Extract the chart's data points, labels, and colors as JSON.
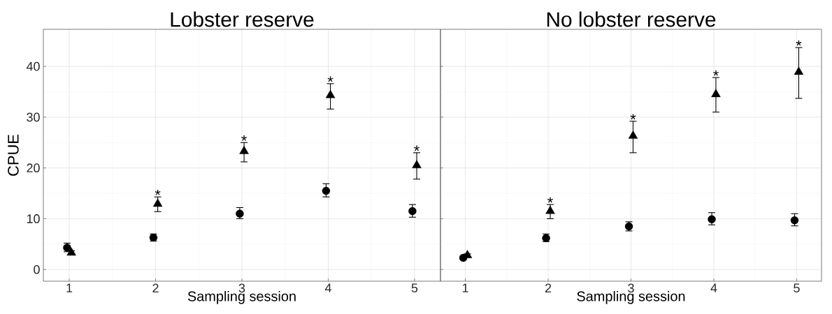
{
  "chart_data": [
    {
      "type": "scatter",
      "title": "Lobster reserve",
      "xlabel": "Sampling session",
      "ylabel": "CPUE",
      "xlim": [
        0.7,
        5.3
      ],
      "ylim": [
        -2.3,
        47.3
      ],
      "xticks": [
        1,
        2,
        3,
        4,
        5
      ],
      "yticks": [
        0,
        10,
        20,
        30,
        40
      ],
      "grid": true,
      "series": [
        {
          "color": "#000000",
          "marker": "circle",
          "x": [
            0.975,
            1.975,
            2.975,
            3.975,
            4.975
          ],
          "values": [
            4.3,
            6.3,
            11.0,
            15.5,
            11.5
          ],
          "errors": [
            [
              3.5,
              5.2
            ],
            [
              5.6,
              7.0
            ],
            [
              10.0,
              12.2
            ],
            [
              14.3,
              16.9
            ],
            [
              10.3,
              12.8
            ]
          ]
        },
        {
          "color": "#000000",
          "marker": "triangle",
          "x": [
            1.025,
            2.025,
            3.025,
            4.025,
            5.025
          ],
          "values": [
            3.3,
            12.9,
            23.3,
            34.3,
            20.5
          ],
          "errors": [
            [
              2.9,
              3.7
            ],
            [
              11.4,
              14.3
            ],
            [
              21.2,
              25.0
            ],
            [
              31.6,
              36.6
            ],
            [
              17.8,
              23.0
            ]
          ]
        }
      ],
      "annotations": [
        {
          "text": "*",
          "x": 2.025,
          "y": 14.3
        },
        {
          "text": "*",
          "x": 3.025,
          "y": 25.0
        },
        {
          "text": "*",
          "x": 4.025,
          "y": 36.6
        },
        {
          "text": "*",
          "x": 5.025,
          "y": 23.0
        }
      ]
    },
    {
      "type": "scatter",
      "title": "No lobster reserve",
      "xlabel": "Sampling session",
      "xlim": [
        0.7,
        5.3
      ],
      "ylim": [
        -2.3,
        47.3
      ],
      "xticks": [
        1,
        2,
        3,
        4,
        5
      ],
      "yticks": [
        0,
        10,
        20,
        30,
        40
      ],
      "grid": true,
      "tick_labels": "x",
      "series": [
        {
          "color": "#000000",
          "marker": "circle",
          "x": [
            0.975,
            1.975,
            2.975,
            3.975,
            4.975
          ],
          "values": [
            2.3,
            6.2,
            8.5,
            9.9,
            9.7
          ],
          "errors": [
            [
              2.0,
              2.6
            ],
            [
              5.5,
              7.0
            ],
            [
              7.6,
              9.4
            ],
            [
              8.8,
              11.2
            ],
            [
              8.6,
              11.0
            ]
          ]
        },
        {
          "color": "#000000",
          "marker": "triangle",
          "x": [
            1.025,
            2.025,
            3.025,
            4.025,
            5.025
          ],
          "values": [
            2.8,
            11.5,
            26.3,
            34.5,
            38.9
          ],
          "errors": [
            [
              2.5,
              3.1
            ],
            [
              10.0,
              12.8
            ],
            [
              23.0,
              29.2
            ],
            [
              31.0,
              37.8
            ],
            [
              33.7,
              43.7
            ]
          ]
        }
      ],
      "annotations": [
        {
          "text": "*",
          "x": 2.025,
          "y": 12.8
        },
        {
          "text": "*",
          "x": 3.025,
          "y": 29.2
        },
        {
          "text": "*",
          "x": 4.025,
          "y": 37.8
        },
        {
          "text": "*",
          "x": 5.025,
          "y": 43.7
        }
      ]
    }
  ]
}
